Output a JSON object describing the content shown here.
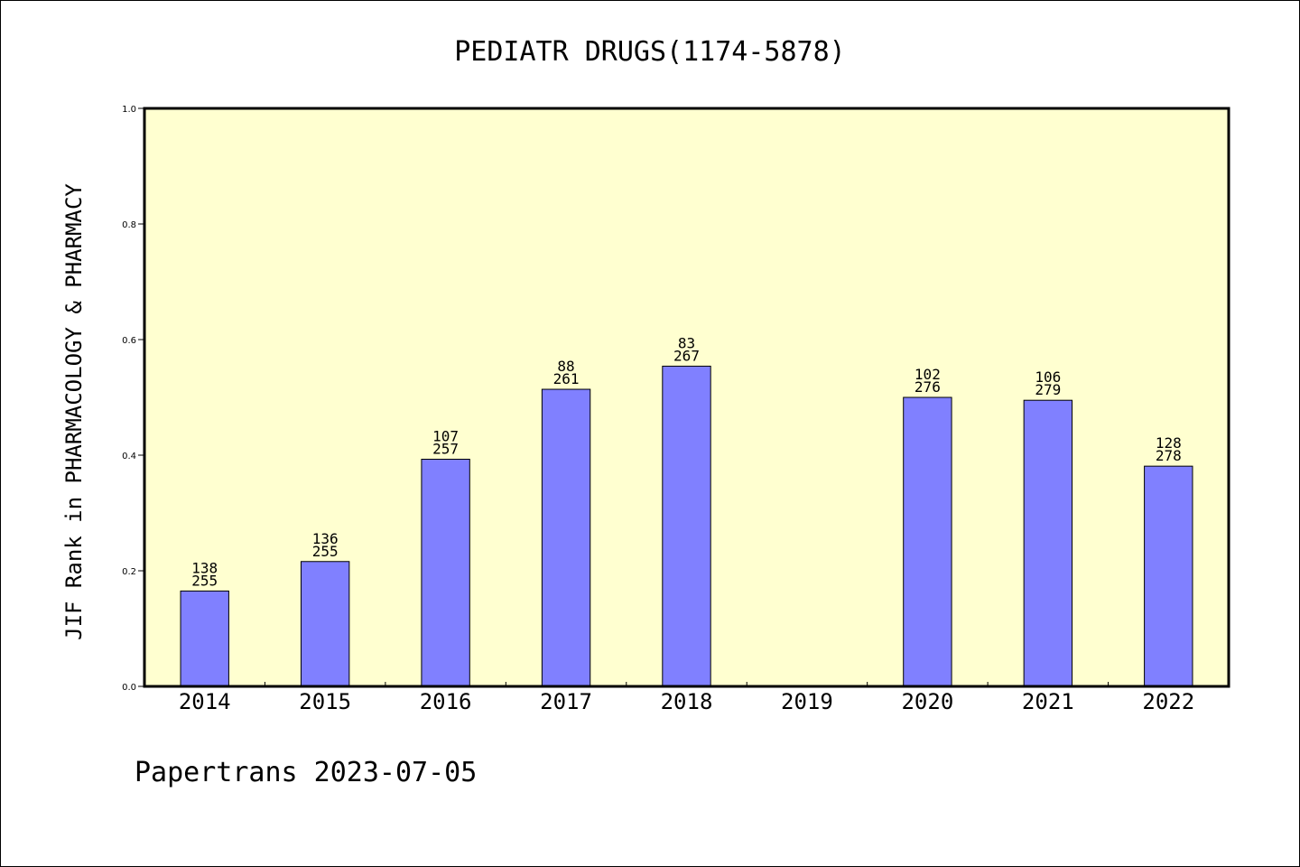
{
  "chart_data": {
    "type": "bar",
    "title": "PEDIATR DRUGS(1174-5878)",
    "ylabel": "JIF Rank in PHARMACOLOGY & PHARMACY",
    "xlabel": "",
    "ylim": [
      0,
      1.0
    ],
    "yticks": [
      "0.0",
      "0.2",
      "0.4",
      "0.6",
      "0.8",
      "1.0"
    ],
    "categories": [
      "2014",
      "2015",
      "2016",
      "2017",
      "2018",
      "2019",
      "2020",
      "2021",
      "2022"
    ],
    "values": [
      0.165,
      0.216,
      0.393,
      0.514,
      0.554,
      null,
      0.5,
      0.495,
      0.381
    ],
    "rank": [
      "138",
      "136",
      "107",
      "88",
      "83",
      "",
      "102",
      "106",
      "128"
    ],
    "total": [
      "255",
      "255",
      "257",
      "261",
      "267",
      "",
      "276",
      "279",
      "278"
    ],
    "grid": false,
    "colors": {
      "plot_bg": "#ffffd0",
      "bar": "#8080ff",
      "bar_edge": "#000000"
    }
  },
  "footer": {
    "text": "Papertrans 2023-07-05"
  }
}
